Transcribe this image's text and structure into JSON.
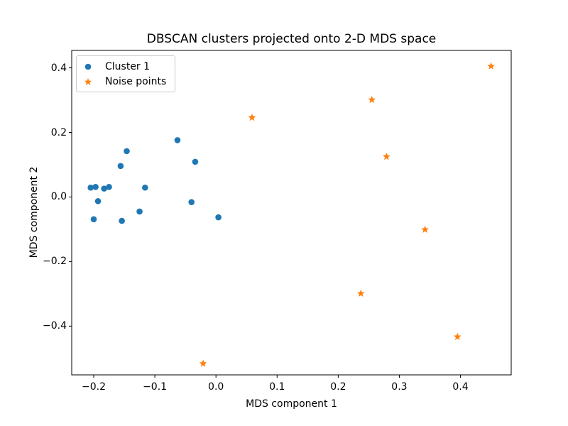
{
  "figure": {
    "background": "#ffffff",
    "text_color": "#000000",
    "spine_color": "#000000",
    "legend_border_color": "#cccccc"
  },
  "chart_data": {
    "type": "scatter",
    "title": "DBSCAN clusters projected onto 2-D MDS space",
    "xlabel": "MDS component 1",
    "ylabel": "MDS component 2",
    "xlim": [
      -0.236,
      0.483
    ],
    "ylim": [
      -0.551,
      0.454
    ],
    "x_ticks": [
      -0.2,
      -0.1,
      0.0,
      0.1,
      0.2,
      0.3,
      0.4
    ],
    "y_ticks": [
      0.4,
      0.2,
      0.0,
      -0.2,
      -0.4
    ],
    "grid": false,
    "legend_position": "upper left",
    "series": [
      {
        "name": "Cluster 1",
        "marker": "circle",
        "color": "#1f77b4",
        "points": [
          [
            -0.063,
            0.176
          ],
          [
            -0.146,
            0.142
          ],
          [
            -0.034,
            0.109
          ],
          [
            -0.156,
            0.096
          ],
          [
            -0.205,
            0.029
          ],
          [
            -0.197,
            0.031
          ],
          [
            -0.183,
            0.026
          ],
          [
            -0.175,
            0.031
          ],
          [
            -0.116,
            0.029
          ],
          [
            -0.193,
            -0.013
          ],
          [
            -0.04,
            -0.016
          ],
          [
            -0.125,
            -0.045
          ],
          [
            -0.2,
            -0.069
          ],
          [
            -0.154,
            -0.074
          ],
          [
            0.004,
            -0.063
          ]
        ]
      },
      {
        "name": "Noise points",
        "marker": "star",
        "color": "#ff7f0e",
        "points": [
          [
            0.45,
            0.405
          ],
          [
            0.255,
            0.301
          ],
          [
            0.059,
            0.246
          ],
          [
            0.279,
            0.125
          ],
          [
            0.342,
            -0.101
          ],
          [
            0.237,
            -0.299
          ],
          [
            0.395,
            -0.433
          ],
          [
            -0.021,
            -0.516
          ]
        ]
      }
    ]
  }
}
